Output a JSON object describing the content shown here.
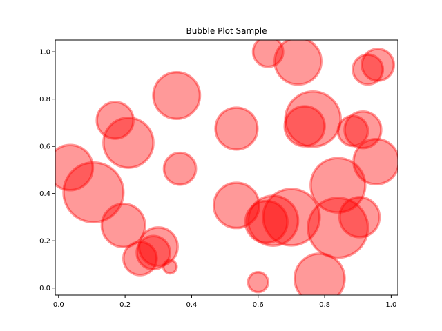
{
  "chart_data": {
    "type": "scatter",
    "title": "Bubble Plot Sample",
    "xlabel": "",
    "ylabel": "",
    "xlim": [
      -0.01,
      1.02
    ],
    "ylim": [
      -0.03,
      1.05
    ],
    "xticks": [
      "0.0",
      "0.2",
      "0.4",
      "0.6",
      "0.8",
      "1.0"
    ],
    "yticks": [
      "0.0",
      "0.2",
      "0.4",
      "0.6",
      "0.8",
      "1.0"
    ],
    "grid": false,
    "legend": "none",
    "bubble_color": "#ff0000",
    "fill_opacity": 0.4,
    "edge_opacity": 0.4,
    "points": [
      {
        "x": 0.035,
        "y": 0.51,
        "r": 0.068
      },
      {
        "x": 0.105,
        "y": 0.405,
        "r": 0.09
      },
      {
        "x": 0.17,
        "y": 0.71,
        "r": 0.055
      },
      {
        "x": 0.21,
        "y": 0.615,
        "r": 0.075
      },
      {
        "x": 0.195,
        "y": 0.265,
        "r": 0.065
      },
      {
        "x": 0.245,
        "y": 0.125,
        "r": 0.05
      },
      {
        "x": 0.3,
        "y": 0.175,
        "r": 0.058
      },
      {
        "x": 0.285,
        "y": 0.15,
        "r": 0.05
      },
      {
        "x": 0.335,
        "y": 0.09,
        "r": 0.02
      },
      {
        "x": 0.355,
        "y": 0.815,
        "r": 0.07
      },
      {
        "x": 0.365,
        "y": 0.505,
        "r": 0.048
      },
      {
        "x": 0.535,
        "y": 0.675,
        "r": 0.063
      },
      {
        "x": 0.535,
        "y": 0.35,
        "r": 0.068
      },
      {
        "x": 0.6,
        "y": 0.025,
        "r": 0.03
      },
      {
        "x": 0.63,
        "y": 1.0,
        "r": 0.045
      },
      {
        "x": 0.72,
        "y": 0.96,
        "r": 0.07
      },
      {
        "x": 0.625,
        "y": 0.28,
        "r": 0.063
      },
      {
        "x": 0.645,
        "y": 0.285,
        "r": 0.075
      },
      {
        "x": 0.7,
        "y": 0.3,
        "r": 0.085
      },
      {
        "x": 0.74,
        "y": 0.685,
        "r": 0.06
      },
      {
        "x": 0.765,
        "y": 0.715,
        "r": 0.083
      },
      {
        "x": 0.785,
        "y": 0.04,
        "r": 0.075
      },
      {
        "x": 0.84,
        "y": 0.435,
        "r": 0.082
      },
      {
        "x": 0.84,
        "y": 0.255,
        "r": 0.09
      },
      {
        "x": 0.885,
        "y": 0.665,
        "r": 0.045
      },
      {
        "x": 0.915,
        "y": 0.67,
        "r": 0.055
      },
      {
        "x": 0.905,
        "y": 0.3,
        "r": 0.06
      },
      {
        "x": 0.93,
        "y": 0.925,
        "r": 0.045
      },
      {
        "x": 0.96,
        "y": 0.945,
        "r": 0.048
      },
      {
        "x": 0.955,
        "y": 0.535,
        "r": 0.068
      }
    ]
  }
}
